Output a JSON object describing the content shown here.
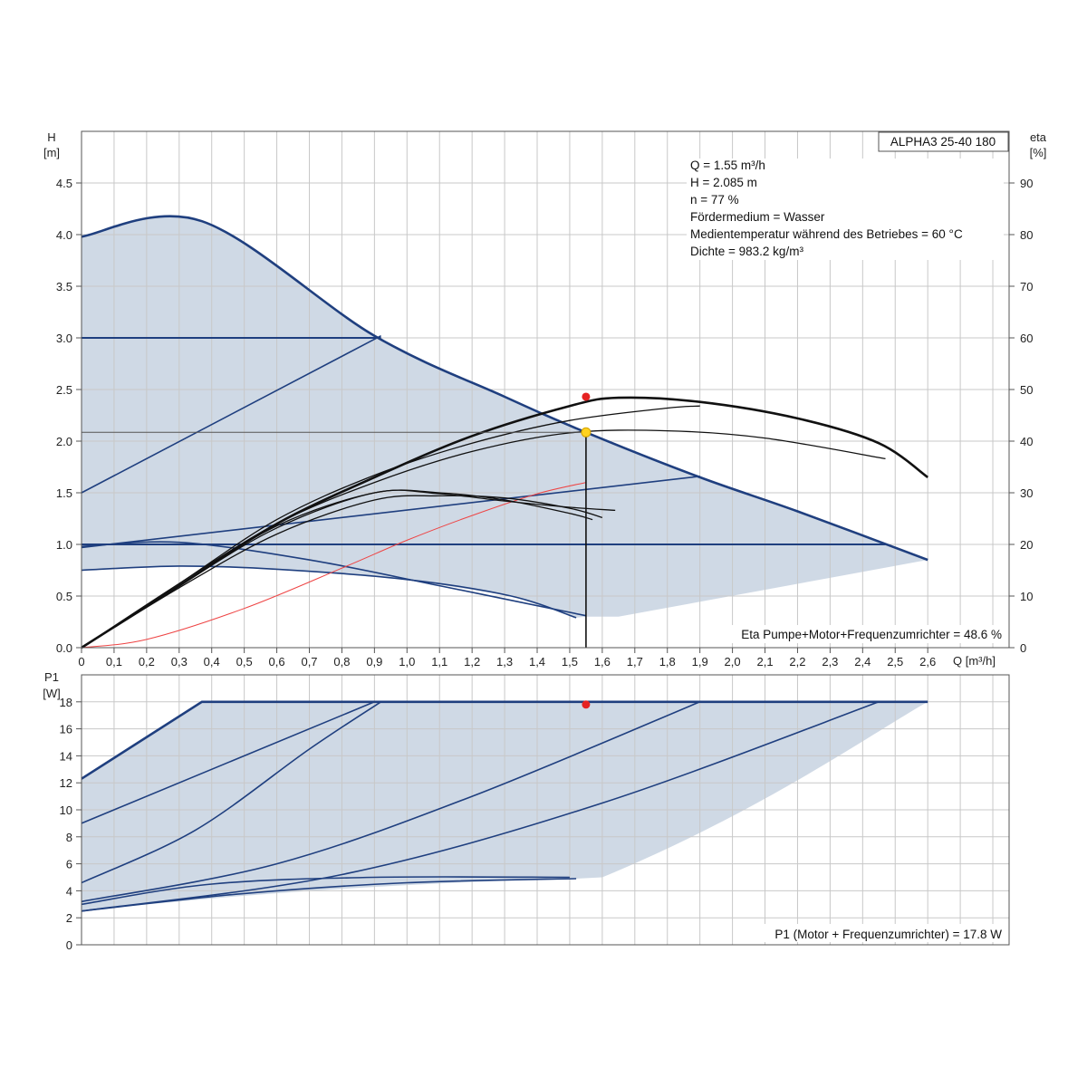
{
  "chart_data": [
    {
      "type": "line",
      "title": "ALPHA3 25-40 180",
      "xlabel": "Q [m³/h]",
      "ylabel_top": "H",
      "ylabel_bottom": "[m]",
      "y2label_top": "eta",
      "y2label_bottom": "[%]",
      "xlim": [
        0,
        2.85
      ],
      "ylim": [
        0,
        5.0
      ],
      "y2lim": [
        0,
        100
      ],
      "grid": true,
      "x_ticks": [
        "0",
        "0,1",
        "0,2",
        "0,3",
        "0,4",
        "0,5",
        "0,6",
        "0,7",
        "0,8",
        "0,9",
        "1,0",
        "1,1",
        "1,2",
        "1,3",
        "1,4",
        "1,5",
        "1,6",
        "1,7",
        "1,8",
        "1,9",
        "2,0",
        "2,1",
        "2,2",
        "2,3",
        "2,4",
        "2,5",
        "2,6"
      ],
      "y_ticks": [
        "0.0",
        "0.5",
        "1.0",
        "1.5",
        "2.0",
        "2.5",
        "3.0",
        "3.5",
        "4.0",
        "4.5"
      ],
      "y2_ticks": [
        "0",
        "10",
        "20",
        "30",
        "40",
        "50",
        "60",
        "70",
        "80",
        "90"
      ],
      "info_lines": [
        "Q = 1.55 m³/h",
        "H = 2.085 m",
        "n = 77 %",
        "Fördermedium = Wasser",
        "Medientemperatur während des Betriebes = 60 °C",
        "Dichte = 983.2 kg/m³"
      ],
      "footer": "Eta Pumpe+Motor+Frequenzumrichter = 48.6 %",
      "operating_point": {
        "q": 1.55,
        "h": 2.085,
        "eta": 48.6
      },
      "colors": {
        "curve": "#1f3f7f",
        "fill": "#cfd9e5",
        "eta": "#111111",
        "system": "#ee4444",
        "point_red": "#e52222",
        "point_yellow": "#ffd21f",
        "grid": "#c8c8c8"
      },
      "series": [
        {
          "x": [
            0,
            0.37,
            0.9,
            1.3,
            1.55,
            1.9,
            2.2,
            2.6
          ],
          "y": [
            3.98,
            4.13,
            3.02,
            2.43,
            2.085,
            1.65,
            1.32,
            0.85
          ]
        },
        {
          "x": [
            0,
            0.92
          ],
          "y": [
            3.0,
            3.0
          ]
        },
        {
          "x": [
            0,
            0.92
          ],
          "y": [
            1.5,
            3.02
          ]
        },
        {
          "x": [
            0,
            1.9
          ],
          "y": [
            0.97,
            1.66
          ]
        },
        {
          "x": [
            0,
            2.47
          ],
          "y": [
            1.0,
            1.0
          ]
        },
        {
          "x": [
            0,
            0.3,
            0.7,
            1.1,
            1.55
          ],
          "y": [
            0.98,
            1.02,
            0.85,
            0.6,
            0.31
          ]
        },
        {
          "x": [
            0,
            0.3,
            0.6,
            1.0,
            1.32,
            1.52
          ],
          "y": [
            0.75,
            0.79,
            0.76,
            0.66,
            0.5,
            0.29
          ]
        },
        {
          "x": [
            0,
            0.2,
            0.5,
            0.8,
            1.0,
            1.2,
            1.4,
            1.55
          ],
          "y": [
            0,
            0.08,
            0.38,
            0.77,
            1.04,
            1.28,
            1.49,
            1.6
          ]
        },
        {
          "x": [
            0,
            0.3,
            0.6,
            0.9,
            1.2,
            1.5,
            1.65,
            1.9,
            2.2,
            2.45,
            2.6
          ],
          "y": [
            0,
            0.6,
            1.2,
            1.65,
            2.05,
            2.34,
            2.42,
            2.38,
            2.22,
            1.98,
            1.65
          ]
        },
        {
          "x": [
            0,
            0.3,
            0.6,
            0.9,
            1.2,
            1.5,
            1.8,
            1.9
          ],
          "y": [
            0,
            0.62,
            1.24,
            1.67,
            1.98,
            2.2,
            2.32,
            2.34
          ]
        },
        {
          "x": [
            0,
            0.3,
            0.6,
            0.9,
            1.2,
            1.5,
            1.8,
            2.1,
            2.47
          ],
          "y": [
            0,
            0.62,
            1.2,
            1.6,
            1.9,
            2.08,
            2.1,
            2.03,
            1.83
          ]
        },
        {
          "x": [
            0,
            0.3,
            0.6,
            0.9,
            1.1,
            1.3,
            1.5,
            1.6
          ],
          "y": [
            0,
            0.58,
            1.1,
            1.43,
            1.47,
            1.45,
            1.35,
            1.26
          ]
        },
        {
          "x": [
            0,
            0.3,
            0.6,
            0.9,
            1.1,
            1.3,
            1.5,
            1.57
          ],
          "y": [
            0,
            0.6,
            1.18,
            1.5,
            1.5,
            1.43,
            1.3,
            1.24
          ]
        },
        {
          "x": [
            0,
            0.3,
            0.6,
            0.9,
            1.1,
            1.3,
            1.5,
            1.64
          ],
          "y": [
            0,
            0.6,
            1.16,
            1.5,
            1.49,
            1.42,
            1.36,
            1.33
          ]
        }
      ]
    },
    {
      "type": "line",
      "ylabel_top": "P1",
      "ylabel_bottom": "[W]",
      "xlim": [
        0,
        2.85
      ],
      "ylim": [
        0,
        20
      ],
      "grid": true,
      "y_ticks": [
        "0",
        "2",
        "4",
        "6",
        "8",
        "10",
        "12",
        "14",
        "16",
        "18"
      ],
      "footer": "P1 (Motor + Frequenzumrichter) = 17.8 W",
      "operating_point": {
        "q": 1.55,
        "p": 17.8
      },
      "series": [
        {
          "x": [
            0,
            0.37,
            2.6
          ],
          "y": [
            12.3,
            18.0,
            18.0
          ]
        },
        {
          "x": [
            0,
            0.9
          ],
          "y": [
            9.0,
            18.0
          ]
        },
        {
          "x": [
            0,
            0.35,
            0.7,
            0.92
          ],
          "y": [
            4.6,
            8.5,
            14.5,
            18.0
          ]
        },
        {
          "x": [
            0,
            0.6,
            1.2,
            1.9
          ],
          "y": [
            3.2,
            6.0,
            11.0,
            18.0
          ]
        },
        {
          "x": [
            0,
            0.8,
            1.6,
            2.45
          ],
          "y": [
            2.5,
            5.2,
            10.5,
            18.0
          ]
        },
        {
          "x": [
            0,
            0.5,
            1.0,
            1.52
          ],
          "y": [
            2.5,
            3.8,
            4.6,
            4.9
          ]
        },
        {
          "x": [
            0,
            0.4,
            0.9,
            1.5
          ],
          "y": [
            3.0,
            4.5,
            5.0,
            5.0
          ]
        }
      ]
    }
  ]
}
